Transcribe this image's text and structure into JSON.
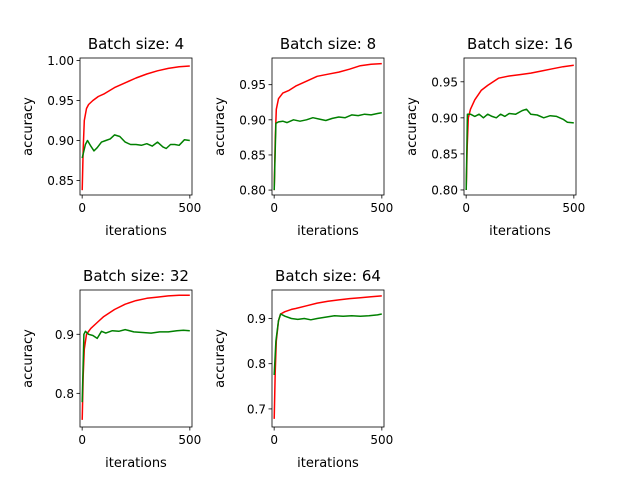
{
  "chart_data": [
    {
      "type": "line",
      "title": "Batch size: 4",
      "xlabel": "iterations",
      "ylabel": "accuracy",
      "xlim": [
        -10,
        510
      ],
      "ylim": [
        0.832,
        1.003
      ],
      "xticks": [
        0,
        500
      ],
      "yticks": [
        0.85,
        0.9,
        0.95,
        1.0
      ],
      "ytick_labels": [
        "0.85",
        "0.90",
        "0.95",
        "1.00"
      ],
      "series": [
        {
          "color": "#ff0000",
          "x": [
            0,
            5,
            10,
            20,
            30,
            50,
            75,
            100,
            150,
            200,
            250,
            300,
            350,
            400,
            450,
            500
          ],
          "y": [
            0.838,
            0.89,
            0.925,
            0.94,
            0.945,
            0.95,
            0.955,
            0.958,
            0.966,
            0.972,
            0.978,
            0.983,
            0.987,
            0.99,
            0.992,
            0.993
          ]
        },
        {
          "color": "#008000",
          "x": [
            0,
            15,
            25,
            40,
            55,
            70,
            90,
            110,
            130,
            150,
            175,
            200,
            225,
            250,
            275,
            300,
            325,
            350,
            375,
            390,
            410,
            430,
            450,
            475,
            500
          ],
          "y": [
            0.878,
            0.895,
            0.9,
            0.893,
            0.887,
            0.891,
            0.898,
            0.9,
            0.902,
            0.907,
            0.905,
            0.898,
            0.895,
            0.895,
            0.894,
            0.896,
            0.893,
            0.898,
            0.892,
            0.89,
            0.895,
            0.895,
            0.894,
            0.901,
            0.9
          ]
        }
      ]
    },
    {
      "type": "line",
      "title": "Batch size: 8",
      "xlabel": "iterations",
      "ylabel": "accuracy",
      "xlim": [
        -10,
        510
      ],
      "ylim": [
        0.793,
        0.988
      ],
      "xticks": [
        0,
        500
      ],
      "yticks": [
        0.8,
        0.85,
        0.9,
        0.95
      ],
      "ytick_labels": [
        "0.80",
        "0.85",
        "0.90",
        "0.95"
      ],
      "series": [
        {
          "color": "#ff0000",
          "x": [
            0,
            5,
            10,
            20,
            40,
            70,
            100,
            150,
            200,
            250,
            300,
            350,
            400,
            450,
            500
          ],
          "y": [
            0.8,
            0.87,
            0.915,
            0.93,
            0.938,
            0.942,
            0.948,
            0.955,
            0.962,
            0.965,
            0.968,
            0.972,
            0.977,
            0.979,
            0.98
          ]
        },
        {
          "color": "#008000",
          "x": [
            0,
            8,
            20,
            40,
            60,
            90,
            120,
            150,
            180,
            210,
            240,
            270,
            300,
            330,
            360,
            390,
            420,
            450,
            480,
            500
          ],
          "y": [
            0.8,
            0.895,
            0.897,
            0.898,
            0.896,
            0.9,
            0.898,
            0.9,
            0.903,
            0.901,
            0.899,
            0.902,
            0.904,
            0.903,
            0.907,
            0.906,
            0.908,
            0.907,
            0.909,
            0.91
          ]
        }
      ]
    },
    {
      "type": "line",
      "title": "Batch size: 16",
      "xlabel": "iterations",
      "ylabel": "accuracy",
      "xlim": [
        -10,
        510
      ],
      "ylim": [
        0.793,
        0.983
      ],
      "xticks": [
        0,
        500
      ],
      "yticks": [
        0.8,
        0.85,
        0.9,
        0.95
      ],
      "ytick_labels": [
        "0.80",
        "0.85",
        "0.90",
        "0.95"
      ],
      "series": [
        {
          "color": "#ff0000",
          "x": [
            0,
            5,
            10,
            20,
            40,
            70,
            100,
            150,
            200,
            250,
            300,
            350,
            400,
            450,
            500
          ],
          "y": [
            0.8,
            0.86,
            0.9,
            0.912,
            0.925,
            0.938,
            0.945,
            0.955,
            0.958,
            0.96,
            0.962,
            0.965,
            0.968,
            0.971,
            0.973
          ]
        },
        {
          "color": "#008000",
          "x": [
            0,
            6,
            20,
            40,
            60,
            80,
            100,
            120,
            140,
            160,
            180,
            200,
            230,
            260,
            280,
            300,
            330,
            360,
            390,
            420,
            450,
            470,
            500
          ],
          "y": [
            0.8,
            0.905,
            0.905,
            0.902,
            0.905,
            0.9,
            0.905,
            0.902,
            0.9,
            0.905,
            0.902,
            0.906,
            0.905,
            0.91,
            0.912,
            0.905,
            0.904,
            0.9,
            0.903,
            0.902,
            0.898,
            0.894,
            0.893
          ]
        }
      ]
    },
    {
      "type": "line",
      "title": "Batch size: 32",
      "xlabel": "iterations",
      "ylabel": "accuracy",
      "xlim": [
        -10,
        510
      ],
      "ylim": [
        0.743,
        0.975
      ],
      "xticks": [
        0,
        500
      ],
      "yticks": [
        0.8,
        0.9
      ],
      "ytick_labels": [
        "0.8",
        "0.9"
      ],
      "series": [
        {
          "color": "#ff0000",
          "x": [
            0,
            5,
            10,
            20,
            40,
            70,
            100,
            150,
            200,
            250,
            300,
            350,
            400,
            450,
            500
          ],
          "y": [
            0.755,
            0.83,
            0.875,
            0.9,
            0.91,
            0.92,
            0.93,
            0.942,
            0.951,
            0.957,
            0.961,
            0.963,
            0.965,
            0.966,
            0.966
          ]
        },
        {
          "color": "#008000",
          "x": [
            0,
            8,
            15,
            30,
            50,
            70,
            90,
            110,
            140,
            170,
            200,
            240,
            280,
            320,
            360,
            400,
            440,
            470,
            500
          ],
          "y": [
            0.785,
            0.9,
            0.905,
            0.9,
            0.898,
            0.893,
            0.905,
            0.902,
            0.906,
            0.905,
            0.908,
            0.904,
            0.903,
            0.902,
            0.904,
            0.904,
            0.906,
            0.907,
            0.906
          ]
        }
      ]
    },
    {
      "type": "line",
      "title": "Batch size: 64",
      "xlabel": "iterations",
      "ylabel": "accuracy",
      "xlim": [
        -10,
        510
      ],
      "ylim": [
        0.66,
        0.963
      ],
      "xticks": [
        0,
        500
      ],
      "yticks": [
        0.7,
        0.8,
        0.9
      ],
      "ytick_labels": [
        "0.7",
        "0.8",
        "0.9"
      ],
      "series": [
        {
          "color": "#ff0000",
          "x": [
            0,
            5,
            10,
            20,
            30,
            50,
            80,
            100,
            150,
            200,
            250,
            300,
            350,
            400,
            450,
            500
          ],
          "y": [
            0.678,
            0.78,
            0.85,
            0.895,
            0.91,
            0.915,
            0.92,
            0.922,
            0.928,
            0.934,
            0.938,
            0.941,
            0.944,
            0.946,
            0.948,
            0.95
          ]
        },
        {
          "color": "#008000",
          "x": [
            0,
            8,
            20,
            30,
            50,
            80,
            110,
            140,
            170,
            200,
            240,
            280,
            320,
            360,
            400,
            440,
            480,
            500
          ],
          "y": [
            0.775,
            0.85,
            0.895,
            0.91,
            0.905,
            0.9,
            0.898,
            0.9,
            0.897,
            0.9,
            0.903,
            0.906,
            0.905,
            0.906,
            0.905,
            0.906,
            0.908,
            0.91
          ]
        }
      ]
    }
  ]
}
